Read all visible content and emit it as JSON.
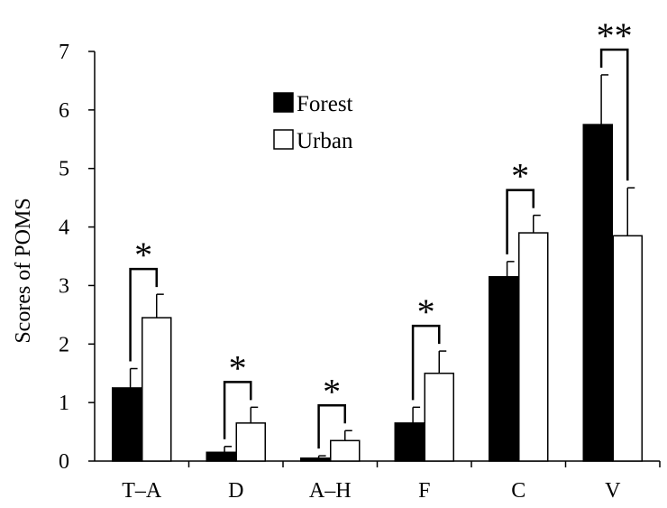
{
  "chart_data": {
    "type": "bar",
    "title": "",
    "xlabel": "",
    "ylabel": "Scores of POMS",
    "ylim": [
      0,
      7
    ],
    "yticks": [
      0,
      1,
      2,
      3,
      4,
      5,
      6,
      7
    ],
    "grid": false,
    "legend_position": "top-center",
    "categories": [
      "T–A",
      "D",
      "A–H",
      "F",
      "C",
      "V"
    ],
    "series": [
      {
        "name": "Forest",
        "color": "#000000",
        "values": [
          1.25,
          0.15,
          0.05,
          0.65,
          3.15,
          5.75
        ],
        "errors": [
          0.33,
          0.1,
          0.04,
          0.27,
          0.26,
          0.85
        ]
      },
      {
        "name": "Urban",
        "color": "#ffffff",
        "values": [
          2.45,
          0.65,
          0.35,
          1.5,
          3.9,
          3.85
        ],
        "errors": [
          0.4,
          0.27,
          0.17,
          0.38,
          0.3,
          0.82
        ]
      }
    ],
    "significance": [
      "*",
      "*",
      "*",
      "*",
      "*",
      "**"
    ]
  }
}
